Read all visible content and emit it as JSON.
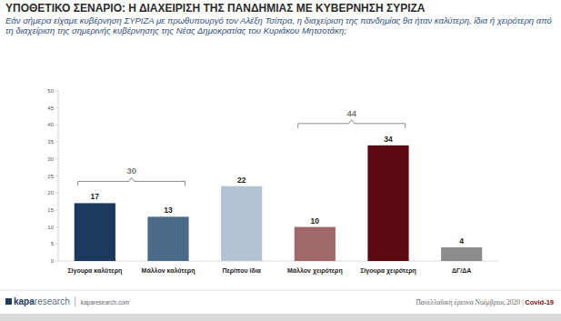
{
  "chart_data": {
    "type": "bar",
    "title": "ΥΠΟΘΕΤΙΚΟ ΣΕΝΑΡΙΟ: Η ΔΙΑΧΕΙΡΙΣΗ ΤΗΣ ΠΑΝΔΗΜΙΑΣ ΜΕ ΚΥΒΕΡΝΗΣΗ ΣΥΡΙΖΑ",
    "subtitle": "Εάν σήμερα είχαμε κυβέρνηση ΣΥΡΙΖΑ με πρωθυπουργό τον Αλέξη Τσίπρα, η διαχείριση της πανδημίας θα ήταν καλύτερη, ίδια ή χειρότερη από τη διαχείριση της σημερινής κυβέρνησης της Νέας Δημοκρατίας του Κυριάκου Μητσοτάκη;",
    "categories": [
      "Σίγουρα καλύτερη",
      "Μάλλον καλύτερη",
      "Περίπου ίδια",
      "Μάλλον χειρότερη",
      "Σίγουρα χειρότερη",
      "ΔΓ/ΔΑ"
    ],
    "values": [
      17,
      13,
      22,
      10,
      34,
      4
    ],
    "colors": [
      "#1c3a5e",
      "#4b6b8b",
      "#b3c3d3",
      "#a06868",
      "#5a0a10",
      "#8c8c8c"
    ],
    "ylim": [
      0,
      50
    ],
    "yticks": [
      0,
      5,
      10,
      15,
      20,
      25,
      30,
      35,
      40,
      45,
      50
    ],
    "grid": false,
    "data_labels": true,
    "groups": [
      {
        "categories": [
          "Σίγουρα καλύτερη",
          "Μάλλον καλύτερη"
        ],
        "value": 30
      },
      {
        "categories": [
          "Μάλλον χειρότερη",
          "Σίγουρα χειρότερη"
        ],
        "value": 44
      }
    ],
    "footer": {
      "logo": "kapa",
      "logo_rest": "research",
      "site": "kaparesearch.com",
      "survey": "Πανελλαδική έρευνα Νοέμβριος 2020 |",
      "topic": "Covid-19"
    }
  }
}
